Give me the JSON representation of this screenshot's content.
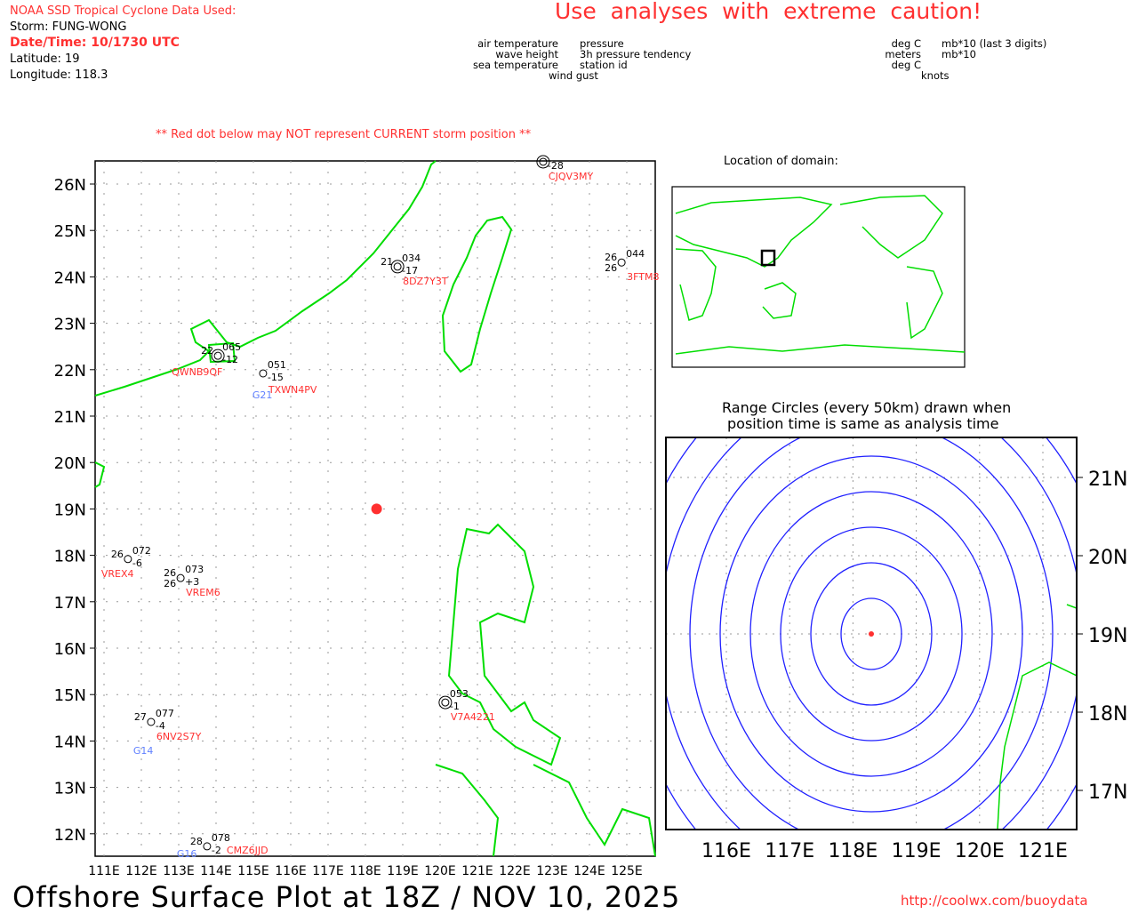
{
  "header": {
    "source": "NOAA SSD Tropical Cyclone Data Used:",
    "storm": "Storm: FUNG-WONG",
    "datetime": "Date/Time: 10/1730 UTC",
    "latitude": "Latitude: 19",
    "longitude": "Longitude: 118.3",
    "caution": "Use  analyses  with  extreme  caution!",
    "red_dot_note": "** Red dot below may NOT represent CURRENT storm position **"
  },
  "legend": {
    "left": {
      "air_temperature": "air temperature",
      "wave_height": "wave height",
      "sea_temperature": "sea temperature",
      "wind_gust": "wind gust",
      "pressure": "pressure",
      "tendency": "3h pressure tendency",
      "station_id": "station id"
    },
    "right": {
      "deg_c1": "deg C",
      "meters": "meters",
      "deg_c2": "deg C",
      "knots": "knots",
      "mb_last3": "mb*10 (last 3 digits)",
      "mb10": "mb*10"
    }
  },
  "main_map": {
    "lat_labels": [
      "26N",
      "25N",
      "24N",
      "23N",
      "22N",
      "21N",
      "20N",
      "19N",
      "18N",
      "17N",
      "16N",
      "15N",
      "14N",
      "13N",
      "12N"
    ],
    "lats": [
      26,
      25,
      24,
      23,
      22,
      21,
      20,
      19,
      18,
      17,
      16,
      15,
      14,
      13,
      12
    ],
    "lon_labels": [
      "111E",
      "112E",
      "113E",
      "114E",
      "115E",
      "116E",
      "117E",
      "118E",
      "119E",
      "120E",
      "121E",
      "122E",
      "123E",
      "124E",
      "125E"
    ],
    "lons": [
      111,
      112,
      113,
      114,
      115,
      116,
      117,
      118,
      119,
      120,
      121,
      122,
      123,
      124,
      125
    ],
    "storm": {
      "lon": 118.3,
      "lat": 19.0,
      "color": "#ff3030"
    },
    "stations": [
      {
        "id": "QWNB9QF",
        "lon": 114.05,
        "lat": 22.3,
        "air": "22",
        "pres": "065",
        "tend": "-12",
        "sea": "",
        "gust": "",
        "double": true
      },
      {
        "id": "TXWN4PV",
        "lon": 115.26,
        "lat": 21.92,
        "air": "",
        "pres": "051",
        "tend": "-15",
        "sea": "",
        "gust": "G21"
      },
      {
        "id": "8DZ7Y3T",
        "lon": 118.86,
        "lat": 24.22,
        "air": "21",
        "pres": "034",
        "tend": "-17",
        "sea": "",
        "gust": "",
        "double": true
      },
      {
        "id": "CJQV3MY",
        "lon": 122.76,
        "lat": 26.48,
        "air": "",
        "pres": "",
        "tend": "-28",
        "sea": "",
        "gust": "",
        "double": true
      },
      {
        "id": "3FTM8",
        "lon": 124.86,
        "lat": 24.31,
        "air": "26",
        "pres": "044",
        "tend": "",
        "sea": "26",
        "gust": ""
      },
      {
        "id": "VREX4",
        "lon": 111.64,
        "lat": 17.92,
        "air": "26",
        "pres": "072",
        "tend": "-6",
        "sea": "",
        "gust": ""
      },
      {
        "id": "VREM6",
        "lon": 113.05,
        "lat": 17.51,
        "air": "26",
        "pres": "073",
        "tend": "+3",
        "sea": "26",
        "gust": ""
      },
      {
        "id": "6NV2S7Y",
        "lon": 112.26,
        "lat": 14.41,
        "air": "27",
        "pres": "077",
        "tend": "-4",
        "sea": "",
        "gust": "G14"
      },
      {
        "id": "CMZ6JJD",
        "lon": 113.76,
        "lat": 11.73,
        "air": "28",
        "pres": "078",
        "tend": "-2",
        "sea": "",
        "gust": "G16"
      },
      {
        "id": "V7A4221",
        "lon": 120.14,
        "lat": 14.83,
        "air": "",
        "pres": "053",
        "tend": "-1",
        "sea": "",
        "gust": "",
        "double": true
      }
    ]
  },
  "inset": {
    "title": "Location of domain:"
  },
  "range_panel": {
    "title_line1": "Range Circles (every 50km) drawn when",
    "title_line2": "position time is same as analysis time",
    "lat_labels": [
      "21N",
      "20N",
      "19N",
      "18N",
      "17N"
    ],
    "lats": [
      21,
      20,
      19,
      18,
      17
    ],
    "lon_labels": [
      "116E",
      "117E",
      "118E",
      "119E",
      "120E",
      "121E"
    ],
    "lons": [
      116,
      117,
      118,
      119,
      120,
      121
    ],
    "ring_count": 9
  },
  "footer": {
    "title": "Offshore Surface Plot at 18Z / NOV 10, 2025",
    "url": "http://coolwx.com/buoydata"
  }
}
